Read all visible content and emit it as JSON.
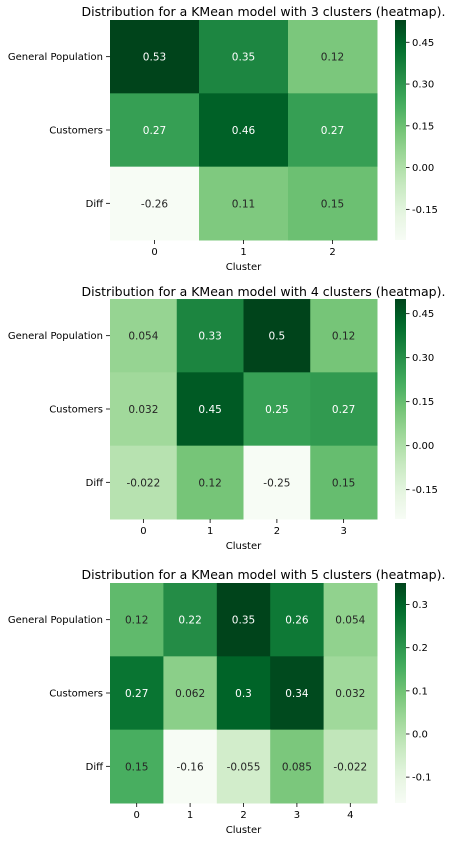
{
  "chart_data": [
    {
      "type": "heatmap",
      "title": "Distribution for a KMean model with 3 clusters (heatmap).",
      "xlabel": "Cluster",
      "ylabel": "",
      "x_categories": [
        "0",
        "1",
        "2"
      ],
      "y_categories": [
        "General Population",
        "Customers",
        "Diff"
      ],
      "values": [
        [
          0.53,
          0.35,
          0.12
        ],
        [
          0.27,
          0.46,
          0.27
        ],
        [
          -0.26,
          0.11,
          0.15
        ]
      ],
      "value_labels": [
        [
          "0.53",
          "0.35",
          "0.12"
        ],
        [
          "0.27",
          "0.46",
          "0.27"
        ],
        [
          "-0.26",
          "0.11",
          "0.15"
        ]
      ],
      "colorbar": {
        "vmin": -0.26,
        "vmax": 0.53,
        "ticks": [
          -0.15,
          0.0,
          0.15,
          0.3,
          0.45
        ],
        "tick_labels": [
          "-0.15",
          "0.00",
          "0.15",
          "0.30",
          "0.45"
        ]
      },
      "colormap": "Greens"
    },
    {
      "type": "heatmap",
      "title": "Distribution for a KMean model with 4 clusters (heatmap).",
      "xlabel": "Cluster",
      "ylabel": "",
      "x_categories": [
        "0",
        "1",
        "2",
        "3"
      ],
      "y_categories": [
        "General Population",
        "Customers",
        "Diff"
      ],
      "values": [
        [
          0.054,
          0.33,
          0.5,
          0.12
        ],
        [
          0.032,
          0.45,
          0.25,
          0.27
        ],
        [
          -0.022,
          0.12,
          -0.25,
          0.15
        ]
      ],
      "value_labels": [
        [
          "0.054",
          "0.33",
          "0.5",
          "0.12"
        ],
        [
          "0.032",
          "0.45",
          "0.25",
          "0.27"
        ],
        [
          "-0.022",
          "0.12",
          "-0.25",
          "0.15"
        ]
      ],
      "colorbar": {
        "vmin": -0.25,
        "vmax": 0.5,
        "ticks": [
          -0.15,
          0.0,
          0.15,
          0.3,
          0.45
        ],
        "tick_labels": [
          "-0.15",
          "0.00",
          "0.15",
          "0.30",
          "0.45"
        ]
      },
      "colormap": "Greens"
    },
    {
      "type": "heatmap",
      "title": "Distribution for a KMean model with 5 clusters (heatmap).",
      "xlabel": "Cluster",
      "ylabel": "",
      "x_categories": [
        "0",
        "1",
        "2",
        "3",
        "4"
      ],
      "y_categories": [
        "General Population",
        "Customers",
        "Diff"
      ],
      "values": [
        [
          0.12,
          0.22,
          0.35,
          0.26,
          0.054
        ],
        [
          0.27,
          0.062,
          0.3,
          0.34,
          0.032
        ],
        [
          0.15,
          -0.16,
          -0.055,
          0.085,
          -0.022
        ]
      ],
      "value_labels": [
        [
          "0.12",
          "0.22",
          "0.35",
          "0.26",
          "0.054"
        ],
        [
          "0.27",
          "0.062",
          "0.3",
          "0.34",
          "0.032"
        ],
        [
          "0.15",
          "-0.16",
          "-0.055",
          "0.085",
          "-0.022"
        ]
      ],
      "colorbar": {
        "vmin": -0.16,
        "vmax": 0.35,
        "ticks": [
          -0.1,
          0.0,
          0.1,
          0.2,
          0.3
        ],
        "tick_labels": [
          "-0.1",
          "0.0",
          "0.1",
          "0.2",
          "0.3"
        ]
      },
      "colormap": "Greens"
    }
  ]
}
